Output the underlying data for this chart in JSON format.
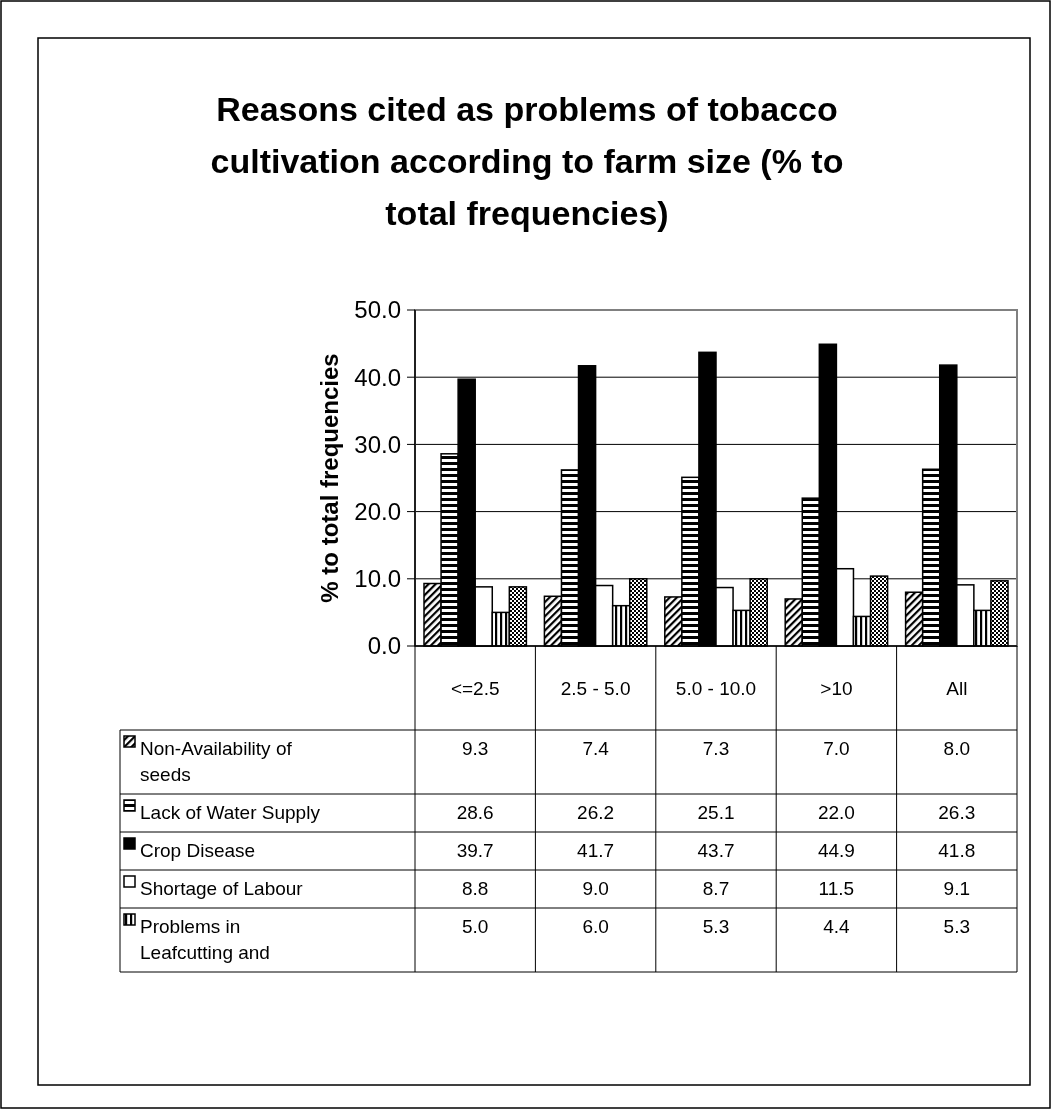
{
  "chart_data": {
    "type": "bar",
    "title": "Reasons cited as problems of tobacco cultivation according to farm size (% to total frequencies)",
    "ylabel": "% to total frequencies",
    "categories": [
      "<=2.5",
      "2.5 - 5.0",
      "5.0 - 10.0",
      ">10",
      "All"
    ],
    "series": [
      {
        "name": "Non-Availability of seeds",
        "color": "#000000",
        "values": [
          9.3,
          7.4,
          7.3,
          7.0,
          8.0
        ],
        "value_labels": [
          "9.3",
          "7.4",
          "7.3",
          "7.0",
          "8.0"
        ]
      },
      {
        "name": "Lack of Water Supply",
        "color": "#000000",
        "values": [
          28.6,
          26.2,
          25.1,
          22.0,
          26.3
        ],
        "value_labels": [
          "28.6",
          "26.2",
          "25.1",
          "22.0",
          "26.3"
        ]
      },
      {
        "name": "Crop Disease",
        "color": "#000000",
        "values": [
          39.7,
          41.7,
          43.7,
          44.9,
          41.8
        ],
        "value_labels": [
          "39.7",
          "41.7",
          "43.7",
          "44.9",
          "41.8"
        ]
      },
      {
        "name": "Shortage of Labour",
        "color": "#ffffff",
        "values": [
          8.8,
          9.0,
          8.7,
          11.5,
          9.1
        ],
        "value_labels": [
          "8.8",
          "9.0",
          "8.7",
          "11.5",
          "9.1"
        ]
      },
      {
        "name": "Problems in Leafcutting and",
        "color": "#000000",
        "values": [
          5.0,
          6.0,
          5.3,
          4.4,
          5.3
        ],
        "value_labels": [
          "5.0",
          "6.0",
          "5.3",
          "4.4",
          "5.3"
        ]
      },
      {
        "color": "#000000",
        "values": [
          8.8,
          10.0,
          10.0,
          10.4,
          9.7
        ]
      }
    ],
    "ylim": [
      0,
      50
    ],
    "yticks": [
      {
        "value": 0,
        "label": "0.0"
      },
      {
        "value": 10,
        "label": "10.0"
      },
      {
        "value": 20,
        "label": "20.0"
      },
      {
        "value": 30,
        "label": "30.0"
      },
      {
        "value": 40,
        "label": "40.0"
      },
      {
        "value": 50,
        "label": "50.0"
      }
    ],
    "grid": "y",
    "legend": "bottom"
  }
}
